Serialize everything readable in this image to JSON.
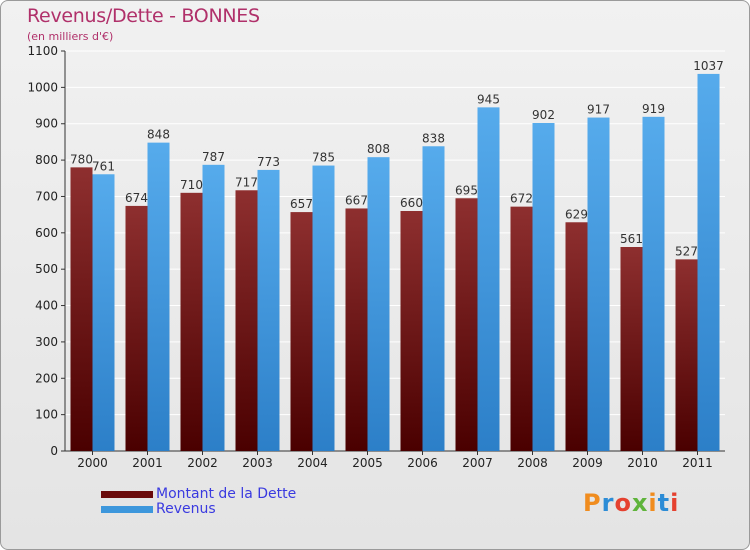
{
  "title": "Revenus/Dette - BONNES",
  "subtitle": "(en milliers d'€)",
  "logo": {
    "text": "Proxiti",
    "letters": [
      "P",
      "r",
      "o",
      "x",
      "i",
      "t",
      "i"
    ],
    "colors": [
      "#f08c1e",
      "#2c8cd6",
      "#e5412f",
      "#5fb43b",
      "#f08c1e",
      "#2c8cd6",
      "#e5412f"
    ]
  },
  "chart_data": {
    "type": "bar",
    "categories": [
      "2000",
      "2001",
      "2002",
      "2003",
      "2004",
      "2005",
      "2006",
      "2007",
      "2008",
      "2009",
      "2010",
      "2011"
    ],
    "series": [
      {
        "name": "Montant de la Dette",
        "color": "#7a1a1a",
        "values": [
          780,
          674,
          710,
          717,
          657,
          667,
          660,
          695,
          672,
          629,
          561,
          527
        ]
      },
      {
        "name": "Revenus",
        "color": "#3d97dc",
        "values": [
          761,
          848,
          787,
          773,
          785,
          808,
          838,
          945,
          902,
          917,
          919,
          1037
        ]
      }
    ],
    "ylim": [
      0,
      1100
    ],
    "yticks": [
      0,
      100,
      200,
      300,
      400,
      500,
      600,
      700,
      800,
      900,
      1000,
      1100
    ],
    "grid": true,
    "legend": "bottom-left",
    "xlabel": "",
    "ylabel": ""
  }
}
